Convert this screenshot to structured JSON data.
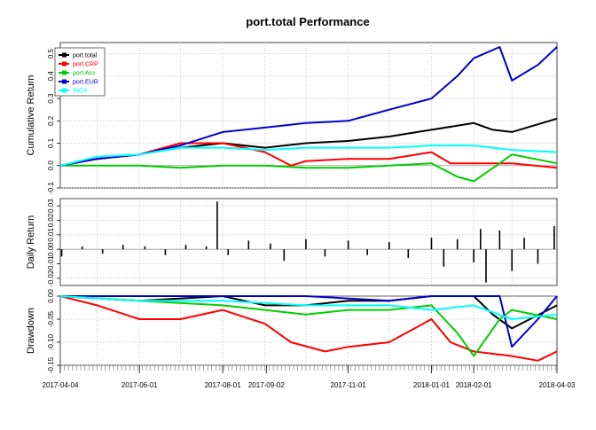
{
  "title": "port.total Performance",
  "chart_data": [
    {
      "type": "line",
      "ylabel": "Cumulative Return",
      "ylim": [
        -0.1,
        0.55
      ],
      "yticks": [
        -0.1,
        0.0,
        0.1,
        0.2,
        0.3,
        0.4,
        0.5
      ],
      "ytick_labels": [
        "-0.1",
        "0.0",
        "0.1",
        "0.2",
        "0.3",
        "0.4",
        "0.5"
      ],
      "grid": true,
      "legend_placement": "top-left",
      "series": [
        {
          "name": "port.total",
          "color": "#000000",
          "x": [
            "2017-04-04",
            "2017-05-01",
            "2017-06-01",
            "2017-07-01",
            "2017-08-01",
            "2017-09-01",
            "2017-10-01",
            "2017-11-01",
            "2017-12-01",
            "2018-01-01",
            "2018-02-01",
            "2018-02-15",
            "2018-03-01",
            "2018-04-03"
          ],
          "values": [
            0.0,
            0.03,
            0.05,
            0.08,
            0.1,
            0.08,
            0.1,
            0.11,
            0.13,
            0.16,
            0.19,
            0.16,
            0.15,
            0.21
          ]
        },
        {
          "name": "port.CRP",
          "color": "#ff0000",
          "x": [
            "2017-04-04",
            "2017-05-01",
            "2017-06-01",
            "2017-07-01",
            "2017-08-01",
            "2017-09-01",
            "2017-09-20",
            "2017-10-01",
            "2017-11-01",
            "2017-12-01",
            "2018-01-01",
            "2018-01-15",
            "2018-02-01",
            "2018-03-01",
            "2018-04-03"
          ],
          "values": [
            0.0,
            0.03,
            0.05,
            0.1,
            0.1,
            0.06,
            0.0,
            0.02,
            0.03,
            0.03,
            0.06,
            0.01,
            0.01,
            0.01,
            -0.01
          ]
        },
        {
          "name": "port.Aro",
          "color": "#00cd00",
          "x": [
            "2017-04-04",
            "2017-05-01",
            "2017-06-01",
            "2017-07-01",
            "2017-08-01",
            "2017-09-01",
            "2017-10-01",
            "2017-11-01",
            "2017-12-01",
            "2018-01-01",
            "2018-01-20",
            "2018-02-01",
            "2018-02-20",
            "2018-03-01",
            "2018-04-03"
          ],
          "values": [
            0.0,
            0.0,
            0.0,
            -0.01,
            0.0,
            0.0,
            -0.01,
            -0.01,
            0.0,
            0.01,
            -0.05,
            -0.07,
            0.01,
            0.05,
            0.01
          ]
        },
        {
          "name": "port.EUR",
          "color": "#0000cd",
          "x": [
            "2017-04-04",
            "2017-05-01",
            "2017-06-01",
            "2017-07-01",
            "2017-08-01",
            "2017-09-01",
            "2017-10-01",
            "2017-11-01",
            "2017-12-01",
            "2018-01-01",
            "2018-01-20",
            "2018-02-01",
            "2018-02-20",
            "2018-03-01",
            "2018-03-20",
            "2018-04-03"
          ],
          "values": [
            0.0,
            0.03,
            0.05,
            0.09,
            0.15,
            0.17,
            0.19,
            0.2,
            0.25,
            0.3,
            0.4,
            0.48,
            0.53,
            0.38,
            0.45,
            0.53
          ]
        },
        {
          "name": "INDX",
          "color": "#00ffff",
          "x": [
            "2017-04-04",
            "2017-05-01",
            "2017-06-01",
            "2017-07-01",
            "2017-08-01",
            "2017-09-01",
            "2017-10-01",
            "2017-11-01",
            "2017-12-01",
            "2018-01-01",
            "2018-02-01",
            "2018-03-01",
            "2018-04-03"
          ],
          "values": [
            0.0,
            0.04,
            0.05,
            0.08,
            0.08,
            0.07,
            0.08,
            0.08,
            0.08,
            0.09,
            0.09,
            0.07,
            0.06
          ]
        }
      ]
    },
    {
      "type": "bar",
      "ylabel": "Daily Return",
      "ylim": [
        -0.025,
        0.035
      ],
      "yticks": [
        -0.02,
        -0.01,
        0.0,
        0.01,
        0.02,
        0.03
      ],
      "ytick_labels": [
        "-0.02",
        "-0.01",
        "0.00",
        "0.01",
        "0.02",
        "0.03"
      ],
      "grid": true,
      "x": [
        "2017-04-05",
        "2017-04-20",
        "2017-05-05",
        "2017-05-20",
        "2017-06-05",
        "2017-06-20",
        "2017-07-05",
        "2017-07-20",
        "2017-07-28",
        "2017-08-05",
        "2017-08-20",
        "2017-09-05",
        "2017-09-15",
        "2017-10-01",
        "2017-10-15",
        "2017-11-01",
        "2017-11-15",
        "2017-12-01",
        "2017-12-15",
        "2018-01-01",
        "2018-01-10",
        "2018-01-20",
        "2018-02-01",
        "2018-02-06",
        "2018-02-10",
        "2018-02-20",
        "2018-03-01",
        "2018-03-10",
        "2018-03-20",
        "2018-04-01"
      ],
      "values": [
        -0.005,
        0.002,
        -0.003,
        0.003,
        0.002,
        -0.004,
        0.003,
        0.002,
        0.033,
        -0.004,
        0.006,
        0.004,
        -0.008,
        0.007,
        -0.005,
        0.006,
        -0.004,
        0.005,
        -0.006,
        0.008,
        -0.012,
        0.007,
        -0.009,
        0.014,
        -0.023,
        0.013,
        -0.015,
        0.008,
        -0.01,
        0.016
      ]
    },
    {
      "type": "area",
      "ylabel": "Drawdown",
      "ylim": [
        -0.15,
        0.0
      ],
      "yticks": [
        -0.15,
        -0.1,
        -0.05,
        0.0
      ],
      "ytick_labels": [
        "-0.15",
        "-0.10",
        "-0.05",
        "0.00"
      ],
      "grid": true,
      "x_tick_labels": [
        "2017-04-04",
        "2017-06-01",
        "2017-08-01",
        "2017-09-02",
        "2017-11-01",
        "2018-01-01",
        "2018-02-01",
        "2018-04-03"
      ],
      "x_tick_dates": [
        "2017-04-04",
        "2017-06-01",
        "2017-08-01",
        "2017-09-02",
        "2017-11-01",
        "2018-01-01",
        "2018-02-01",
        "2018-04-03"
      ],
      "series": [
        {
          "name": "port.total",
          "color": "#000000",
          "x": [
            "2017-04-04",
            "2017-06-01",
            "2017-08-01",
            "2017-09-01",
            "2017-10-01",
            "2017-11-01",
            "2017-12-01",
            "2018-01-01",
            "2018-02-01",
            "2018-02-15",
            "2018-03-01",
            "2018-04-03"
          ],
          "values": [
            0.0,
            -0.01,
            0.0,
            -0.02,
            -0.02,
            -0.01,
            -0.01,
            0.0,
            0.0,
            -0.04,
            -0.07,
            -0.02
          ]
        },
        {
          "name": "port.CRP",
          "color": "#ff0000",
          "x": [
            "2017-04-04",
            "2017-05-01",
            "2017-06-01",
            "2017-07-01",
            "2017-08-01",
            "2017-09-01",
            "2017-09-20",
            "2017-10-15",
            "2017-11-01",
            "2017-12-01",
            "2018-01-01",
            "2018-01-15",
            "2018-02-01",
            "2018-03-01",
            "2018-03-20",
            "2018-04-03"
          ],
          "values": [
            0.0,
            -0.02,
            -0.05,
            -0.05,
            -0.03,
            -0.06,
            -0.1,
            -0.12,
            -0.11,
            -0.1,
            -0.05,
            -0.1,
            -0.12,
            -0.13,
            -0.14,
            -0.12
          ]
        },
        {
          "name": "port.Aro",
          "color": "#00cd00",
          "x": [
            "2017-04-04",
            "2017-06-01",
            "2017-08-01",
            "2017-09-01",
            "2017-10-01",
            "2017-11-01",
            "2017-12-01",
            "2018-01-01",
            "2018-01-20",
            "2018-02-01",
            "2018-02-20",
            "2018-03-01",
            "2018-04-03"
          ],
          "values": [
            0.0,
            -0.01,
            -0.02,
            -0.03,
            -0.04,
            -0.03,
            -0.03,
            -0.02,
            -0.08,
            -0.13,
            -0.05,
            -0.03,
            -0.05
          ]
        },
        {
          "name": "port.EUR",
          "color": "#0000cd",
          "x": [
            "2017-04-04",
            "2017-06-01",
            "2017-08-01",
            "2017-10-01",
            "2017-12-01",
            "2018-01-01",
            "2018-02-01",
            "2018-02-20",
            "2018-03-01",
            "2018-03-20",
            "2018-04-03"
          ],
          "values": [
            0.0,
            0.0,
            0.0,
            0.0,
            -0.01,
            0.0,
            0.0,
            0.0,
            -0.11,
            -0.05,
            0.0
          ]
        },
        {
          "name": "INDX",
          "color": "#00ffff",
          "x": [
            "2017-04-04",
            "2017-06-01",
            "2017-08-01",
            "2017-10-01",
            "2017-12-01",
            "2018-01-01",
            "2018-02-01",
            "2018-03-01",
            "2018-04-03"
          ],
          "values": [
            0.0,
            -0.01,
            -0.01,
            -0.02,
            -0.02,
            -0.03,
            -0.02,
            -0.05,
            -0.04
          ]
        }
      ]
    }
  ]
}
